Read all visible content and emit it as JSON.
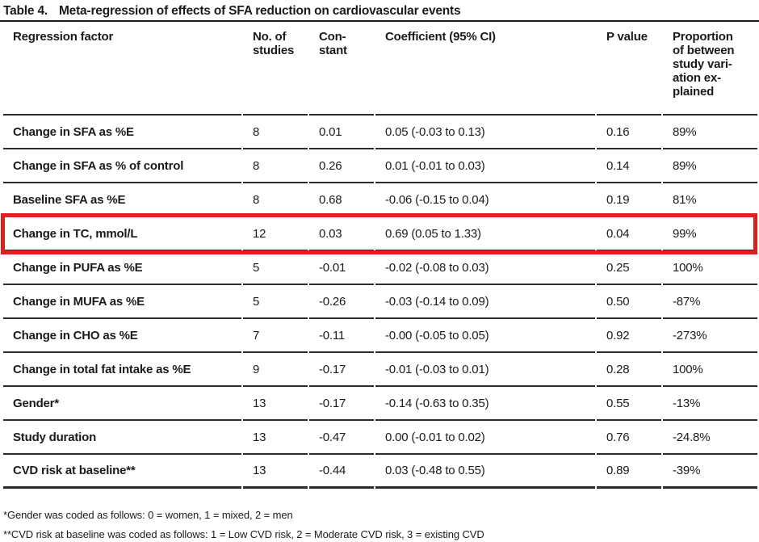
{
  "page": {
    "title_label": "Table 4.",
    "title_text": "Meta-regression of effects of SFA reduction on cardiovascular events"
  },
  "table": {
    "columns": [
      {
        "id": "factor",
        "label": "Regression factor"
      },
      {
        "id": "studies",
        "label": "No. of\nstudies"
      },
      {
        "id": "constant",
        "label": "Con-\nstant"
      },
      {
        "id": "coefficient",
        "label": "Coefficient (95% CI)"
      },
      {
        "id": "p_value",
        "label": "P value"
      },
      {
        "id": "proportion",
        "label": "Proportion\nof between\nstudy vari-\nation ex-\nplained"
      }
    ],
    "rows": [
      {
        "factor": "Change in SFA as %E",
        "studies": "8",
        "constant": "0.01",
        "coefficient": "0.05 (-0.03 to 0.13)",
        "p_value": "0.16",
        "proportion": "89%",
        "highlighted": false
      },
      {
        "factor": "Change in SFA as % of control",
        "studies": "8",
        "constant": "0.26",
        "coefficient": "0.01 (-0.01 to 0.03)",
        "p_value": "0.14",
        "proportion": "89%",
        "highlighted": false
      },
      {
        "factor": "Baseline SFA as %E",
        "studies": "8",
        "constant": "0.68",
        "coefficient": "-0.06 (-0.15 to 0.04)",
        "p_value": "0.19",
        "proportion": "81%",
        "highlighted": false
      },
      {
        "factor": "Change in TC, mmol/L",
        "studies": "12",
        "constant": "0.03",
        "coefficient": "0.69 (0.05 to 1.33)",
        "p_value": "0.04",
        "proportion": "99%",
        "highlighted": true
      },
      {
        "factor": "Change in PUFA as %E",
        "studies": "5",
        "constant": "-0.01",
        "coefficient": "-0.02 (-0.08 to 0.03)",
        "p_value": "0.25",
        "proportion": "100%",
        "highlighted": false
      },
      {
        "factor": "Change in MUFA as %E",
        "studies": "5",
        "constant": "-0.26",
        "coefficient": "-0.03 (-0.14 to 0.09)",
        "p_value": "0.50",
        "proportion": "-87%",
        "highlighted": false
      },
      {
        "factor": "Change in CHO as %E",
        "studies": "7",
        "constant": "-0.11",
        "coefficient": "-0.00 (-0.05 to 0.05)",
        "p_value": "0.92",
        "proportion": "-273%",
        "highlighted": false
      },
      {
        "factor": "Change in total fat intake as %E",
        "studies": "9",
        "constant": "-0.17",
        "coefficient": "-0.01 (-0.03 to 0.01)",
        "p_value": "0.28",
        "proportion": "100%",
        "highlighted": false
      },
      {
        "factor": "Gender*",
        "studies": "13",
        "constant": "-0.17",
        "coefficient": "-0.14 (-0.63 to 0.35)",
        "p_value": "0.55",
        "proportion": "-13%",
        "highlighted": false
      },
      {
        "factor": "Study duration",
        "studies": "13",
        "constant": "-0.47",
        "coefficient": "0.00 (-0.01 to 0.02)",
        "p_value": "0.76",
        "proportion": "-24.8%",
        "highlighted": false
      },
      {
        "factor": "CVD risk at baseline**",
        "studies": "13",
        "constant": "-0.44",
        "coefficient": "0.03 (-0.48 to 0.55)",
        "p_value": "0.89",
        "proportion": "-39%",
        "highlighted": false
      }
    ]
  },
  "footnotes": [
    "*Gender was coded as follows: 0 = women, 1 = mixed, 2 = men",
    "**CVD risk at baseline was coded as follows: 1 = Low CVD risk, 2 = Moderate CVD risk, 3 = existing CVD"
  ],
  "colors": {
    "highlight_border": "#e01f1f",
    "rule": "#2b2b2b",
    "text": "#1b1b1b"
  }
}
